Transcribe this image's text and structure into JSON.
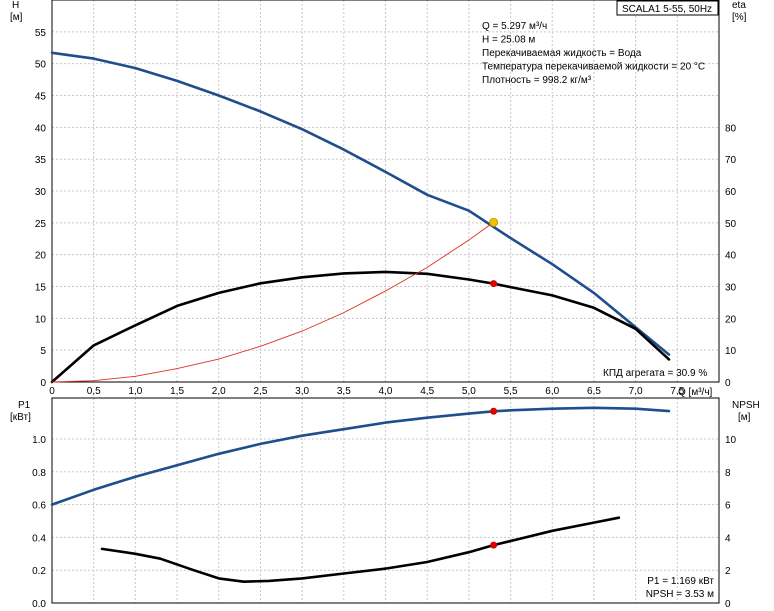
{
  "chart_data": [
    {
      "type": "line",
      "title": "SCALA1 5-55, 50Hz",
      "left_axis": {
        "label": "H",
        "unit": "[м]",
        "ticks": [
          0,
          5,
          10,
          15,
          20,
          25,
          30,
          35,
          40,
          45,
          50,
          55
        ],
        "range": [
          0,
          60
        ]
      },
      "right_axis": {
        "label": "eta",
        "unit": "[%]",
        "ticks": [
          0,
          10,
          20,
          30,
          40,
          50,
          60,
          70,
          80
        ],
        "range": [
          0,
          120
        ]
      },
      "x_axis": {
        "label": "Q [м³/ч]",
        "ticks": [
          0,
          0.5,
          1.0,
          1.5,
          2.0,
          2.5,
          3.0,
          3.5,
          4.0,
          4.5,
          5.0,
          5.5,
          6.0,
          6.5,
          7.0,
          7.5
        ],
        "tick_labels": [
          "0",
          "0,5",
          "1,0",
          "1,5",
          "2,0",
          "2,5",
          "3,0",
          "3,5",
          "4,0",
          "4,5",
          "5,0",
          "5,5",
          "6,0",
          "6,5",
          "7,0",
          "7,5"
        ],
        "range": [
          0,
          8
        ]
      },
      "info_lines": [
        "Q = 5.297 м³/ч",
        "H = 25.08 м",
        "Перекачиваемая жидкость = Вода",
        "Температура перекачиваемой жидкости = 20 °C",
        "Плотность = 998.2 кг/м³"
      ],
      "efficiency_note": "КПД агрегата = 30.9 %",
      "series": [
        {
          "axis": "left",
          "color": "#1f4e8c",
          "x": [
            0,
            0.5,
            1.0,
            1.5,
            2.0,
            2.5,
            3.0,
            3.5,
            4.0,
            4.5,
            5.0,
            5.5,
            6.0,
            6.5,
            7.0,
            7.4
          ],
          "y": [
            51.7,
            50.8,
            49.3,
            47.3,
            45.0,
            42.5,
            39.7,
            36.5,
            33.0,
            29.4,
            26.9,
            22.6,
            18.5,
            14.0,
            8.6,
            4.3
          ]
        },
        {
          "axis": "right",
          "color": "#000000",
          "x": [
            0,
            0.5,
            1.0,
            1.5,
            2.0,
            2.5,
            3.0,
            3.5,
            4.0,
            4.5,
            5.0,
            5.297,
            5.5,
            6.0,
            6.5,
            7.0,
            7.4
          ],
          "y": [
            0,
            11.5,
            17.8,
            23.9,
            28.0,
            31.0,
            32.9,
            34.1,
            34.6,
            34.0,
            32.2,
            30.9,
            29.8,
            27.2,
            23.3,
            16.7,
            7.1
          ]
        },
        {
          "axis": "left",
          "color": "#e03020",
          "x": [
            0,
            0.5,
            1.0,
            1.5,
            2.0,
            2.5,
            3.0,
            3.5,
            4.0,
            4.5,
            5.0,
            5.297
          ],
          "y": [
            0,
            0.2,
            0.9,
            2.1,
            3.6,
            5.6,
            8.0,
            10.9,
            14.3,
            18.0,
            22.3,
            25.08
          ]
        }
      ],
      "operating_points": [
        {
          "x": 5.297,
          "y": 25.08,
          "axis": "left",
          "color": "#f5c400"
        },
        {
          "x": 5.297,
          "y": 30.9,
          "axis": "right",
          "color": "#e00000"
        }
      ]
    },
    {
      "type": "line",
      "left_axis": {
        "label": "P1",
        "unit": "[кВт]",
        "ticks": [
          0.0,
          0.2,
          0.4,
          0.6,
          0.8,
          1.0
        ],
        "tick_labels": [
          "0.0",
          "0.2",
          "0.4",
          "0.6",
          "0.8",
          "1.0"
        ],
        "range": [
          0,
          1.25
        ]
      },
      "right_axis": {
        "label": "NPSH",
        "unit": "[м]",
        "ticks": [
          0,
          2,
          4,
          6,
          8,
          10
        ],
        "range": [
          0,
          12.5
        ]
      },
      "info_lines": [
        "P1 = 1.169 кВт",
        "NPSH = 3.53 м"
      ],
      "series": [
        {
          "axis": "left",
          "color": "#1f4e8c",
          "x": [
            0,
            0.5,
            1.0,
            1.5,
            2.0,
            2.5,
            3.0,
            3.5,
            4.0,
            4.5,
            5.0,
            5.297,
            5.5,
            6.0,
            6.5,
            7.0,
            7.4
          ],
          "y": [
            0.6,
            0.69,
            0.77,
            0.84,
            0.91,
            0.97,
            1.02,
            1.06,
            1.1,
            1.13,
            1.155,
            1.169,
            1.175,
            1.185,
            1.19,
            1.185,
            1.17
          ]
        },
        {
          "axis": "right",
          "color": "#000000",
          "x": [
            0.6,
            1.0,
            1.3,
            1.7,
            2.0,
            2.3,
            2.6,
            3.0,
            3.5,
            4.0,
            4.5,
            5.0,
            5.297,
            5.6,
            6.0,
            6.5,
            6.8
          ],
          "y": [
            3.3,
            3.0,
            2.7,
            2.0,
            1.5,
            1.3,
            1.35,
            1.5,
            1.8,
            2.1,
            2.5,
            3.1,
            3.53,
            3.9,
            4.4,
            4.9,
            5.2
          ]
        }
      ],
      "operating_points": [
        {
          "x": 5.297,
          "y": 1.169,
          "axis": "left",
          "color": "#e00000"
        },
        {
          "x": 5.297,
          "y": 3.53,
          "axis": "right",
          "color": "#e00000"
        }
      ]
    }
  ]
}
